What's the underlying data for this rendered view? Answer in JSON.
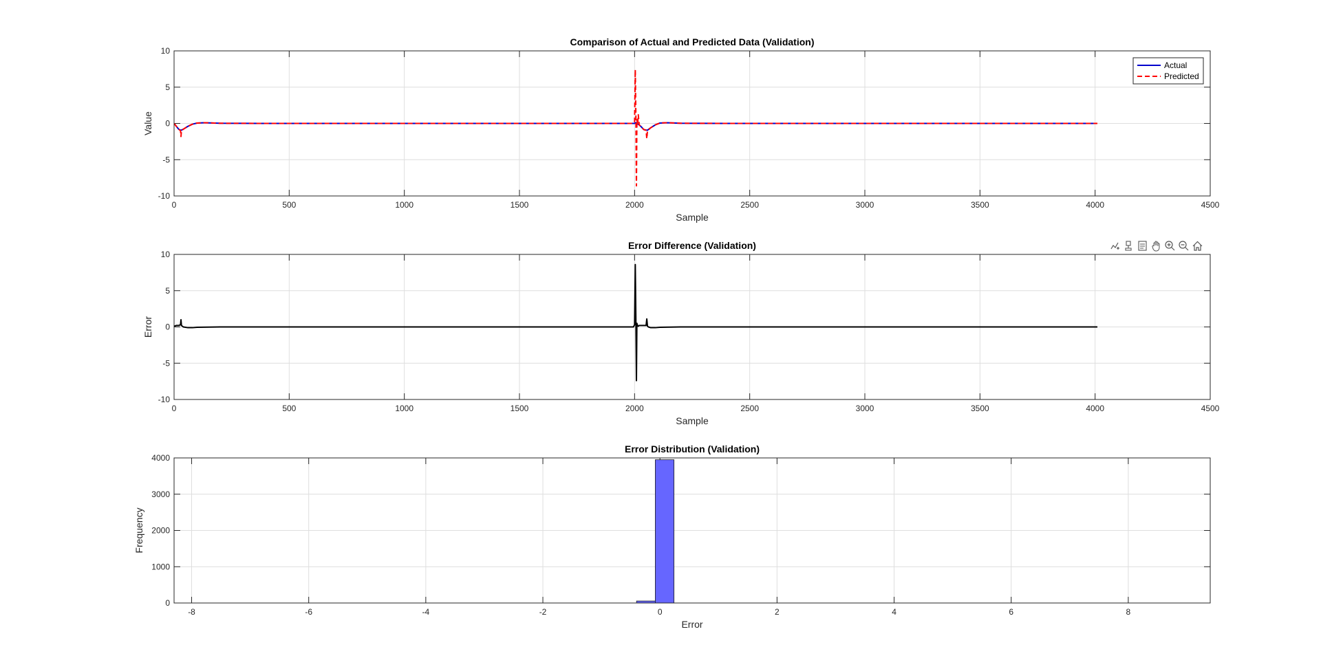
{
  "chart_data": [
    {
      "type": "line",
      "title": "Comparison of Actual and Predicted Data (Validation)",
      "xlabel": "Sample",
      "ylabel": "Value",
      "xlim": [
        0,
        4500
      ],
      "ylim": [
        -10,
        10
      ],
      "xticks": [
        0,
        500,
        1000,
        1500,
        2000,
        2500,
        3000,
        3500,
        4000,
        4500
      ],
      "yticks": [
        -10,
        -5,
        0,
        5,
        10
      ],
      "grid": true,
      "legend": "top-right",
      "series": [
        {
          "name": "Actual",
          "color": "#0000cc",
          "style": "solid",
          "x": [
            0,
            10,
            20,
            30,
            40,
            60,
            80,
            100,
            130,
            200,
            400,
            2000,
            2005,
            2010,
            2020,
            2030,
            2040,
            2055,
            2070,
            2090,
            2110,
            2140,
            2200,
            2400,
            4010
          ],
          "y": [
            0,
            -0.4,
            -0.8,
            -0.95,
            -0.8,
            -0.4,
            -0.1,
            0.05,
            0.1,
            0.02,
            0,
            0,
            0.1,
            0,
            -0.2,
            -0.5,
            -0.85,
            -0.95,
            -0.6,
            -0.2,
            0.05,
            0.1,
            0.02,
            0,
            0
          ]
        },
        {
          "name": "Predicted",
          "color": "#ff0000",
          "style": "dashed",
          "x": [
            0,
            10,
            20,
            28,
            30,
            32,
            40,
            60,
            80,
            100,
            130,
            200,
            400,
            1995,
            2000,
            2003,
            2006,
            2008,
            2010,
            2013,
            2016,
            2020,
            2030,
            2040,
            2050,
            2053,
            2056,
            2060,
            2070,
            2090,
            2110,
            2140,
            2200,
            2400,
            4010
          ],
          "y": [
            0,
            -0.4,
            -0.8,
            -1.0,
            -1.8,
            -1.0,
            -0.8,
            -0.4,
            -0.1,
            0.05,
            0.1,
            0.02,
            0,
            0,
            0.2,
            7.4,
            0,
            -8.6,
            0.5,
            -0.2,
            1.2,
            -0.2,
            -0.5,
            -0.85,
            -0.95,
            -2.1,
            -1.0,
            -0.9,
            -0.6,
            -0.2,
            0.05,
            0.1,
            0.02,
            0,
            0
          ]
        }
      ]
    },
    {
      "type": "line",
      "title": "Error Difference (Validation)",
      "xlabel": "Sample",
      "ylabel": "Error",
      "xlim": [
        0,
        4500
      ],
      "ylim": [
        -10,
        10
      ],
      "xticks": [
        0,
        500,
        1000,
        1500,
        2000,
        2500,
        3000,
        3500,
        4000,
        4500
      ],
      "yticks": [
        -10,
        -5,
        0,
        5,
        10
      ],
      "grid": true,
      "series": [
        {
          "color": "#000000",
          "style": "solid",
          "x": [
            0,
            10,
            20,
            28,
            30,
            32,
            40,
            60,
            80,
            100,
            200,
            1995,
            2000,
            2003,
            2006,
            2008,
            2010,
            2013,
            2016,
            2020,
            2030,
            2050,
            2053,
            2056,
            2060,
            2070,
            2090,
            2110,
            2200,
            4010
          ],
          "y": [
            0.1,
            0.2,
            0.2,
            0.3,
            1.0,
            0.2,
            0,
            -0.1,
            -0.1,
            -0.05,
            0,
            0,
            0.3,
            8.6,
            0,
            -7.4,
            0.5,
            0.2,
            0.1,
            0.2,
            0.2,
            0.2,
            1.1,
            0.1,
            0,
            -0.1,
            -0.1,
            -0.05,
            0,
            0
          ]
        }
      ]
    },
    {
      "type": "bar",
      "subtype": "histogram",
      "title": "Error Distribution (Validation)",
      "xlabel": "Error",
      "ylabel": "Frequency",
      "xlim": [
        -8.3,
        9.4
      ],
      "ylim": [
        0,
        4000
      ],
      "xticks": [
        -8,
        -6,
        -4,
        -2,
        0,
        2,
        4,
        6,
        8
      ],
      "yticks": [
        0,
        1000,
        2000,
        3000,
        4000
      ],
      "grid": true,
      "bar_color": "#6666ff",
      "bins": [
        {
          "start": -0.4,
          "end": -0.08,
          "value": 55
        },
        {
          "start": -0.08,
          "end": 0.24,
          "value": 3950
        }
      ]
    }
  ],
  "toolbar": {
    "icons": [
      "export-icon",
      "brush-icon",
      "data-tip-icon",
      "pan-icon",
      "zoom-in-icon",
      "zoom-out-icon",
      "home-icon"
    ]
  }
}
